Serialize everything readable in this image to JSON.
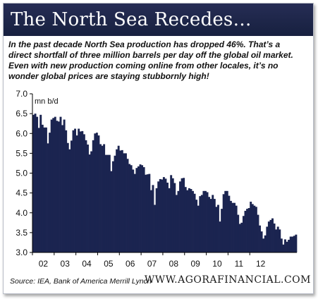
{
  "header": {
    "title": "The North Sea Recedes…",
    "caption": "In the past decade North Sea production has dropped 46%. That’s a direct shortfall of three million barrels per day off the global oil market. Even with new production coming online from other locales, it’s no wonder global prices are staying stubbornly high!"
  },
  "footer": {
    "source": "Source: IEA, Bank of America Merrill Lynch",
    "site": "WWW.AGORAFINANCIAL.COM"
  },
  "colors": {
    "bars": "#1b2450",
    "header": "#1f2749"
  },
  "chart_data": {
    "type": "bar",
    "ylabel": "mn b/d",
    "ylim": [
      3.0,
      7.0
    ],
    "yticks": [
      "3.0",
      "3.5",
      "4.0",
      "4.5",
      "5.0",
      "5.5",
      "6.0",
      "6.5",
      "7.0"
    ],
    "xticks": [
      "02",
      "03",
      "04",
      "05",
      "06",
      "07",
      "08",
      "09",
      "10",
      "11",
      "12"
    ],
    "x_start": "2002-01",
    "x_frequency": "monthly",
    "grid": false,
    "values": [
      6.47,
      6.5,
      6.42,
      6.14,
      6.47,
      6.22,
      6.15,
      6.15,
      5.75,
      6.02,
      6.35,
      6.39,
      6.42,
      6.32,
      6.3,
      6.42,
      6.21,
      6.35,
      6.08,
      5.76,
      5.6,
      5.82,
      6.08,
      6.12,
      5.95,
      6.12,
      6.05,
      6.06,
      5.98,
      5.83,
      5.72,
      5.47,
      5.55,
      5.83,
      6.0,
      6.02,
      5.95,
      5.73,
      5.69,
      5.73,
      5.46,
      5.46,
      5.46,
      5.05,
      5.3,
      5.44,
      5.6,
      5.69,
      5.57,
      5.58,
      5.5,
      5.5,
      5.36,
      5.23,
      5.2,
      5.09,
      4.98,
      5.13,
      5.17,
      5.22,
      5.2,
      5.15,
      4.96,
      4.97,
      4.98,
      4.57,
      4.7,
      4.2,
      4.62,
      4.79,
      4.85,
      4.84,
      4.9,
      4.86,
      4.76,
      4.62,
      4.95,
      4.87,
      4.75,
      4.45,
      4.55,
      4.79,
      4.87,
      4.88,
      4.65,
      4.57,
      4.62,
      4.6,
      4.55,
      4.48,
      4.33,
      4.18,
      4.42,
      4.45,
      4.55,
      4.55,
      4.52,
      4.4,
      4.35,
      4.45,
      4.35,
      4.15,
      4.2,
      3.78,
      4.1,
      4.47,
      4.55,
      4.55,
      4.43,
      4.3,
      4.25,
      4.25,
      4.18,
      3.95,
      3.72,
      3.75,
      3.92,
      4.05,
      4.1,
      4.12,
      4.28,
      4.22,
      4.18,
      4.15,
      3.95,
      3.68,
      3.53,
      3.35,
      3.43,
      3.65,
      3.78,
      3.82,
      3.86,
      3.73,
      3.58,
      3.65,
      3.58,
      3.35,
      3.2,
      3.33,
      3.27,
      3.32,
      3.4,
      3.4,
      3.42,
      3.45
    ]
  }
}
